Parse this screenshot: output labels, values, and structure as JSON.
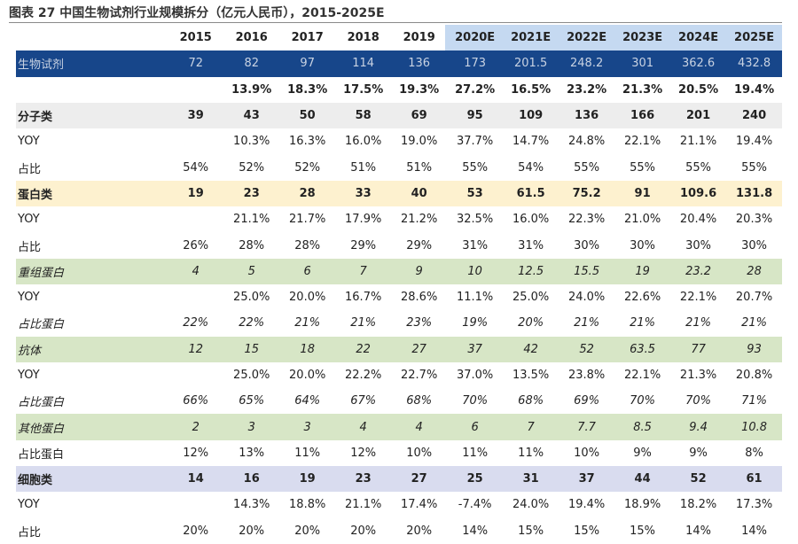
{
  "title": "图表 27 中国生物试剂行业规模拆分（亿元人民币），2015-2025E",
  "columns": [
    "2015",
    "2016",
    "2017",
    "2018",
    "2019",
    "2020E",
    "2021E",
    "2022E",
    "2023E",
    "2024E",
    "2025E"
  ],
  "rows": [
    {
      "label": "生物试剂",
      "values": [
        "72",
        "82",
        "97",
        "114",
        "136",
        "173",
        "201.5",
        "248.2",
        "301",
        "362.6",
        "432.8"
      ]
    },
    {
      "label": "",
      "values": [
        "",
        "13.9%",
        "18.3%",
        "17.5%",
        "19.3%",
        "27.2%",
        "16.5%",
        "23.2%",
        "21.3%",
        "20.5%",
        "19.4%"
      ]
    },
    {
      "label": "分子类",
      "values": [
        "39",
        "43",
        "50",
        "58",
        "69",
        "95",
        "109",
        "136",
        "166",
        "201",
        "240"
      ]
    },
    {
      "label": "YOY",
      "values": [
        "",
        "10.3%",
        "16.3%",
        "16.0%",
        "19.0%",
        "37.7%",
        "14.7%",
        "24.8%",
        "22.1%",
        "21.1%",
        "19.4%"
      ]
    },
    {
      "label": "占比",
      "values": [
        "54%",
        "52%",
        "52%",
        "51%",
        "51%",
        "55%",
        "54%",
        "55%",
        "55%",
        "55%",
        "55%"
      ]
    },
    {
      "label": "蛋白类",
      "values": [
        "19",
        "23",
        "28",
        "33",
        "40",
        "53",
        "61.5",
        "75.2",
        "91",
        "109.6",
        "131.8"
      ]
    },
    {
      "label": "YOY",
      "values": [
        "",
        "21.1%",
        "21.7%",
        "17.9%",
        "21.2%",
        "32.5%",
        "16.0%",
        "22.3%",
        "21.0%",
        "20.4%",
        "20.3%"
      ]
    },
    {
      "label": "占比",
      "values": [
        "26%",
        "28%",
        "28%",
        "29%",
        "29%",
        "31%",
        "31%",
        "30%",
        "30%",
        "30%",
        "30%"
      ]
    },
    {
      "label": "重组蛋白",
      "values": [
        "4",
        "5",
        "6",
        "7",
        "9",
        "10",
        "12.5",
        "15.5",
        "19",
        "23.2",
        "28"
      ]
    },
    {
      "label": "YOY",
      "values": [
        "",
        "25.0%",
        "20.0%",
        "16.7%",
        "28.6%",
        "11.1%",
        "25.0%",
        "24.0%",
        "22.6%",
        "22.1%",
        "20.7%"
      ]
    },
    {
      "label": "占比蛋白",
      "values": [
        "22%",
        "22%",
        "21%",
        "21%",
        "23%",
        "19%",
        "20%",
        "21%",
        "21%",
        "21%",
        "21%"
      ]
    },
    {
      "label": "抗体",
      "values": [
        "12",
        "15",
        "18",
        "22",
        "27",
        "37",
        "42",
        "52",
        "63.5",
        "77",
        "93"
      ]
    },
    {
      "label": "YOY",
      "values": [
        "",
        "25.0%",
        "20.0%",
        "22.2%",
        "22.7%",
        "37.0%",
        "13.5%",
        "23.8%",
        "22.1%",
        "21.3%",
        "20.8%"
      ]
    },
    {
      "label": "占比蛋白",
      "values": [
        "66%",
        "65%",
        "64%",
        "67%",
        "68%",
        "70%",
        "68%",
        "69%",
        "70%",
        "70%",
        "71%"
      ]
    },
    {
      "label": "其他蛋白",
      "values": [
        "2",
        "3",
        "3",
        "4",
        "4",
        "6",
        "7",
        "7.7",
        "8.5",
        "9.4",
        "10.8"
      ]
    },
    {
      "label": "占比蛋白",
      "values": [
        "12%",
        "13%",
        "11%",
        "12%",
        "10%",
        "11%",
        "11%",
        "10%",
        "9%",
        "9%",
        "8%"
      ]
    },
    {
      "label": "细胞类",
      "values": [
        "14",
        "16",
        "19",
        "23",
        "27",
        "25",
        "31",
        "37",
        "44",
        "52",
        "61"
      ]
    },
    {
      "label": "YOY",
      "values": [
        "",
        "14.3%",
        "18.8%",
        "21.1%",
        "17.4%",
        "-7.4%",
        "24.0%",
        "19.4%",
        "18.9%",
        "18.2%",
        "17.3%"
      ]
    },
    {
      "label": "占比",
      "values": [
        "20%",
        "20%",
        "20%",
        "20%",
        "20%",
        "14%",
        "15%",
        "15%",
        "15%",
        "14%",
        "14%"
      ]
    }
  ],
  "colors": {
    "header_projection": "#c5d9f1",
    "main_row": "#17468a",
    "molecular_row": "#ededed",
    "protein_row": "#fdf1cf",
    "protein_sub_row": "#d7e6c6",
    "cell_row": "#d9dcef"
  }
}
